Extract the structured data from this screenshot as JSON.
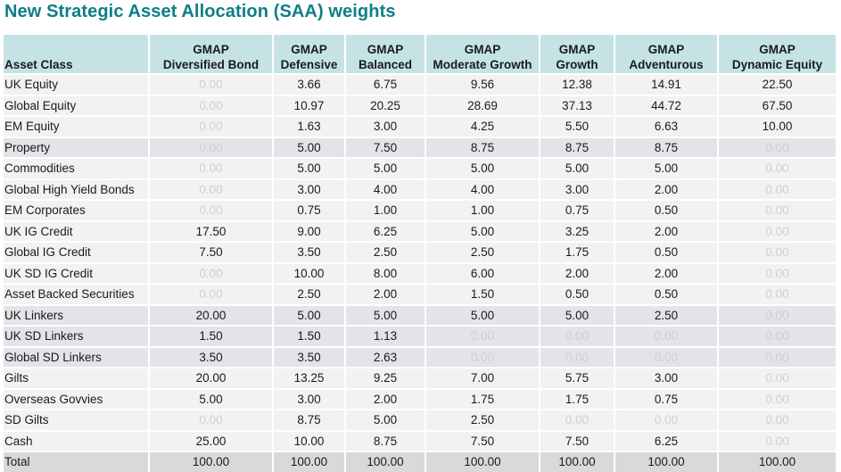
{
  "title": "New Strategic Asset Allocation (SAA) weights",
  "table": {
    "headers": [
      [
        "Asset Class"
      ],
      [
        "GMAP",
        "Diversified Bond"
      ],
      [
        "GMAP",
        "Defensive"
      ],
      [
        "GMAP",
        "Balanced"
      ],
      [
        "GMAP",
        "Moderate Growth"
      ],
      [
        "GMAP",
        "Growth"
      ],
      [
        "GMAP",
        "Adventurous"
      ],
      [
        "GMAP",
        "Dynamic Equity"
      ]
    ],
    "rows": [
      {
        "label": "UK Equity",
        "shade": "light",
        "values": [
          "0.00",
          "3.66",
          "6.75",
          "9.56",
          "12.38",
          "14.91",
          "22.50"
        ]
      },
      {
        "label": "Global Equity",
        "shade": "light",
        "values": [
          "0.00",
          "10.97",
          "20.25",
          "28.69",
          "37.13",
          "44.72",
          "67.50"
        ]
      },
      {
        "label": "EM Equity",
        "shade": "light",
        "values": [
          "0.00",
          "1.63",
          "3.00",
          "4.25",
          "5.50",
          "6.63",
          "10.00"
        ]
      },
      {
        "label": "Property",
        "shade": "dark",
        "values": [
          "0.00",
          "5.00",
          "7.50",
          "8.75",
          "8.75",
          "8.75",
          "0.00"
        ]
      },
      {
        "label": "Commodities",
        "shade": "light",
        "values": [
          "0.00",
          "5.00",
          "5.00",
          "5.00",
          "5.00",
          "5.00",
          "0.00"
        ]
      },
      {
        "label": "Global High Yield Bonds",
        "shade": "light",
        "values": [
          "0.00",
          "3.00",
          "4.00",
          "4.00",
          "3.00",
          "2.00",
          "0.00"
        ]
      },
      {
        "label": "EM Corporates",
        "shade": "light",
        "values": [
          "0.00",
          "0.75",
          "1.00",
          "1.00",
          "0.75",
          "0.50",
          "0.00"
        ]
      },
      {
        "label": "UK IG Credit",
        "shade": "light",
        "values": [
          "17.50",
          "9.00",
          "6.25",
          "5.00",
          "3.25",
          "2.00",
          "0.00"
        ]
      },
      {
        "label": "Global IG Credit",
        "shade": "light",
        "values": [
          "7.50",
          "3.50",
          "2.50",
          "2.50",
          "1.75",
          "0.50",
          "0.00"
        ]
      },
      {
        "label": "UK SD IG Credit",
        "shade": "light",
        "values": [
          "0.00",
          "10.00",
          "8.00",
          "6.00",
          "2.00",
          "2.00",
          "0.00"
        ]
      },
      {
        "label": "Asset Backed Securities",
        "shade": "light",
        "values": [
          "0.00",
          "2.50",
          "2.00",
          "1.50",
          "0.50",
          "0.50",
          "0.00"
        ]
      },
      {
        "label": "UK Linkers",
        "shade": "dark",
        "values": [
          "20.00",
          "5.00",
          "5.00",
          "5.00",
          "5.00",
          "2.50",
          "0.00"
        ]
      },
      {
        "label": "UK SD Linkers",
        "shade": "dark",
        "values": [
          "1.50",
          "1.50",
          "1.13",
          "0.00",
          "0.00",
          "0.00",
          "0.00"
        ]
      },
      {
        "label": "Global SD Linkers",
        "shade": "dark",
        "values": [
          "3.50",
          "3.50",
          "2.63",
          "0.00",
          "0.00",
          "0.00",
          "0.00"
        ]
      },
      {
        "label": "Gilts",
        "shade": "light",
        "values": [
          "20.00",
          "13.25",
          "9.25",
          "7.00",
          "5.75",
          "3.00",
          "0.00"
        ]
      },
      {
        "label": "Overseas Govvies",
        "shade": "light",
        "values": [
          "5.00",
          "3.00",
          "2.00",
          "1.75",
          "1.75",
          "0.75",
          "0.00"
        ]
      },
      {
        "label": "SD Gilts",
        "shade": "light",
        "values": [
          "0.00",
          "8.75",
          "5.00",
          "2.50",
          "0.00",
          "0.00",
          "0.00"
        ]
      },
      {
        "label": "Cash",
        "shade": "light",
        "values": [
          "25.00",
          "10.00",
          "8.75",
          "7.50",
          "7.50",
          "6.25",
          "0.00"
        ]
      },
      {
        "label": "Total",
        "shade": "total",
        "values": [
          "100.00",
          "100.00",
          "100.00",
          "100.00",
          "100.00",
          "100.00",
          "100.00"
        ]
      }
    ]
  },
  "colors": {
    "title": "#0e7e86",
    "header_bg": "#c5e3e5",
    "row_light": "#f2f2f2",
    "row_dark": "#e3e3e8",
    "row_total": "#d9d9d9",
    "zero_text": "#cfcfcf"
  }
}
